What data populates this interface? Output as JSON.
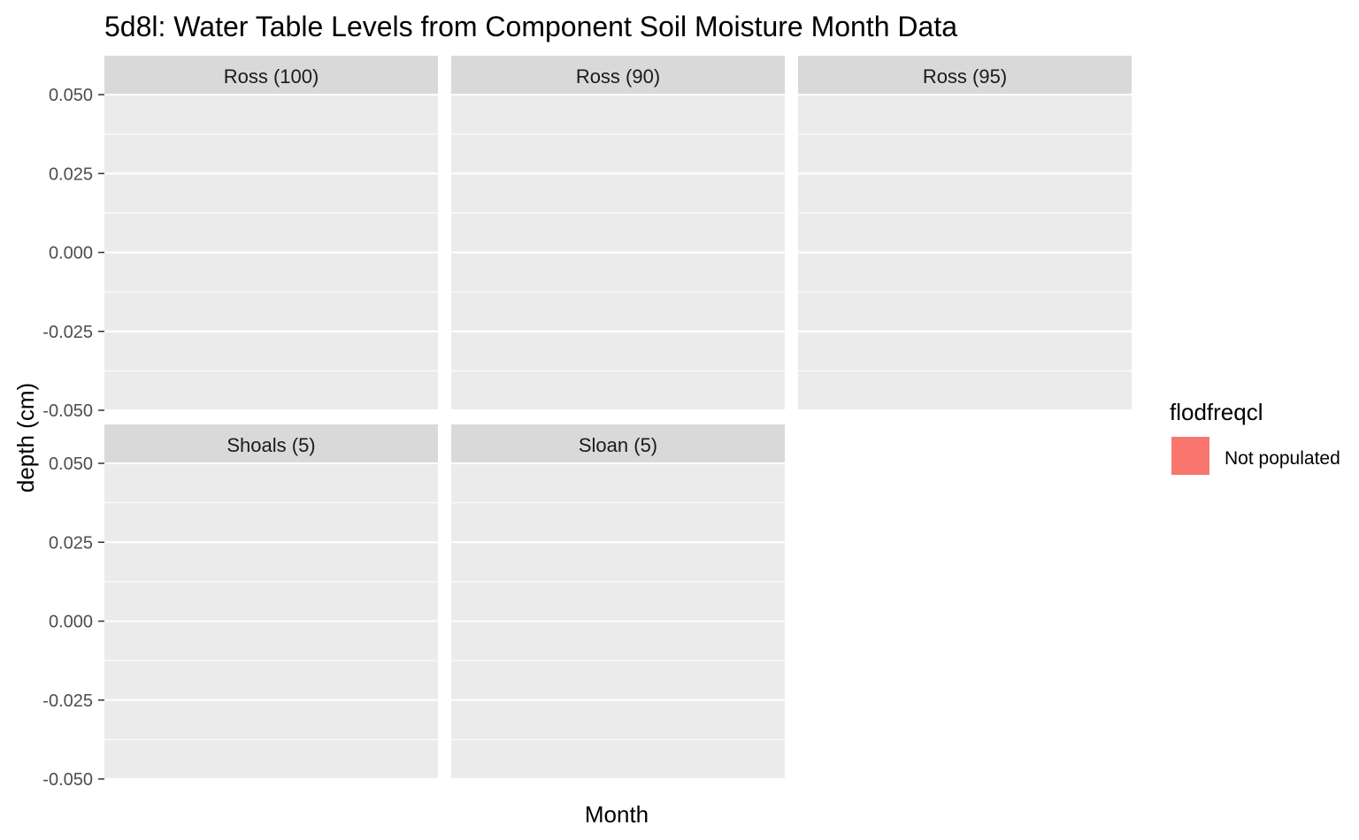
{
  "chart_data": {
    "type": "line",
    "title": "5d8l: Water Table Levels from Component Soil Moisture Month Data",
    "xlabel": "Month",
    "ylabel": "depth (cm)",
    "ylim": [
      -0.05,
      0.05
    ],
    "yticks": [
      0.05,
      0.025,
      0.0,
      -0.025,
      -0.05
    ],
    "ytick_labels": [
      "0.050",
      "0.025",
      "0.000",
      "-0.025",
      "-0.050"
    ],
    "grid": true,
    "legend": {
      "title": "flodfreqcl",
      "position": "right",
      "entries": [
        {
          "label": "Not populated",
          "color": "#F8766D"
        }
      ]
    },
    "facets": [
      {
        "label": "Ross (100)",
        "series": []
      },
      {
        "label": "Ross (90)",
        "series": []
      },
      {
        "label": "Ross (95)",
        "series": []
      },
      {
        "label": "Shoals (5)",
        "series": []
      },
      {
        "label": "Sloan (5)",
        "series": []
      }
    ]
  },
  "colors": {
    "panel_background": "#EBEBEB",
    "strip_background": "#D9D9D9",
    "grid_line": "#FFFFFF",
    "tick_text": "#4D4D4D",
    "legend_fill": "#F8766D"
  }
}
